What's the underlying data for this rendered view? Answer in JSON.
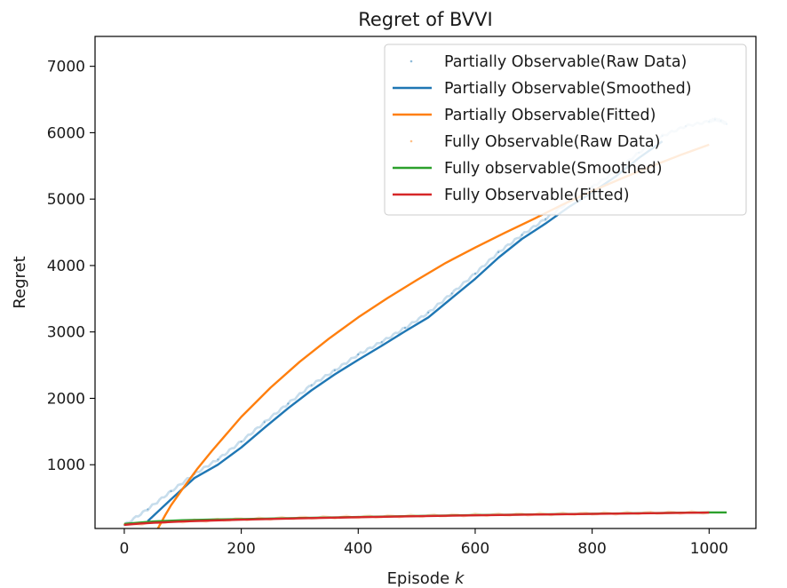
{
  "chart_data": {
    "type": "line",
    "title": "Regret of BVVI",
    "xlabel_text": "Episode ",
    "xlabel_var": "k",
    "ylabel": "Regret",
    "xlim": [
      -50,
      1080
    ],
    "ylim": [
      40,
      7450
    ],
    "xticks": [
      0,
      200,
      400,
      600,
      800,
      1000
    ],
    "yticks": [
      1000,
      2000,
      3000,
      4000,
      5000,
      6000,
      7000
    ],
    "legend_position": "top-right",
    "series": [
      {
        "name": "Partially Observable(Raw Data)",
        "kind": "raw",
        "color": "#1f77b4",
        "x": [
          0,
          40,
          80,
          120,
          160,
          200,
          240,
          280,
          320,
          360,
          400,
          440,
          480,
          520,
          560,
          600,
          640,
          680,
          720,
          760,
          800,
          840,
          880,
          920,
          960,
          1000,
          1010,
          1020,
          1030
        ],
        "y": [
          90,
          330,
          600,
          860,
          1080,
          1350,
          1640,
          1920,
          2200,
          2420,
          2660,
          2850,
          3060,
          3290,
          3580,
          3880,
          4200,
          4460,
          4700,
          4960,
          5180,
          5420,
          5700,
          5950,
          6100,
          6170,
          6200,
          6180,
          6130
        ]
      },
      {
        "name": "Partially Observable(Smoothed)",
        "kind": "line",
        "color": "#1f77b4",
        "x": [
          40,
          80,
          120,
          160,
          200,
          240,
          280,
          320,
          360,
          400,
          440,
          480,
          520,
          560,
          600,
          640,
          680,
          720,
          760,
          800,
          840,
          880,
          920
        ],
        "y": [
          150,
          480,
          800,
          1000,
          1260,
          1560,
          1850,
          2120,
          2360,
          2580,
          2790,
          3010,
          3220,
          3510,
          3800,
          4120,
          4400,
          4630,
          4880,
          5100,
          5340,
          5620,
          5870
        ]
      },
      {
        "name": "Partially Observable(Fitted)",
        "kind": "line",
        "color": "#ff7f0e",
        "x": [
          55,
          60,
          70,
          80,
          100,
          125,
          150,
          200,
          250,
          300,
          350,
          400,
          450,
          500,
          550,
          600,
          650,
          700,
          750,
          800,
          850,
          900,
          950,
          1000
        ],
        "y": [
          0,
          80,
          240,
          390,
          640,
          940,
          1210,
          1720,
          2160,
          2550,
          2900,
          3220,
          3510,
          3780,
          4040,
          4270,
          4490,
          4700,
          4920,
          5120,
          5310,
          5490,
          5660,
          5820
        ]
      },
      {
        "name": "Fully Observable(Raw Data)",
        "kind": "raw",
        "color": "#ff7f0e",
        "x": [
          0,
          100,
          200,
          300,
          400,
          500,
          600,
          700,
          800,
          900,
          1000
        ],
        "y": [
          100,
          150,
          180,
          200,
          215,
          230,
          245,
          255,
          265,
          275,
          285
        ]
      },
      {
        "name": "Fully observable(Smoothed)",
        "kind": "line",
        "color": "#2ca02c",
        "x": [
          0,
          50,
          100,
          150,
          200,
          300,
          400,
          500,
          600,
          700,
          800,
          900,
          1000,
          1030
        ],
        "y": [
          110,
          145,
          165,
          175,
          182,
          198,
          213,
          228,
          242,
          252,
          262,
          272,
          282,
          282
        ]
      },
      {
        "name": "Fully Observable(Fitted)",
        "kind": "line",
        "color": "#d62728",
        "x": [
          0,
          25,
          50,
          100,
          150,
          200,
          300,
          400,
          500,
          600,
          700,
          800,
          900,
          1000
        ],
        "y": [
          95,
          112,
          125,
          145,
          160,
          173,
          193,
          210,
          225,
          238,
          250,
          260,
          270,
          280
        ]
      }
    ]
  }
}
